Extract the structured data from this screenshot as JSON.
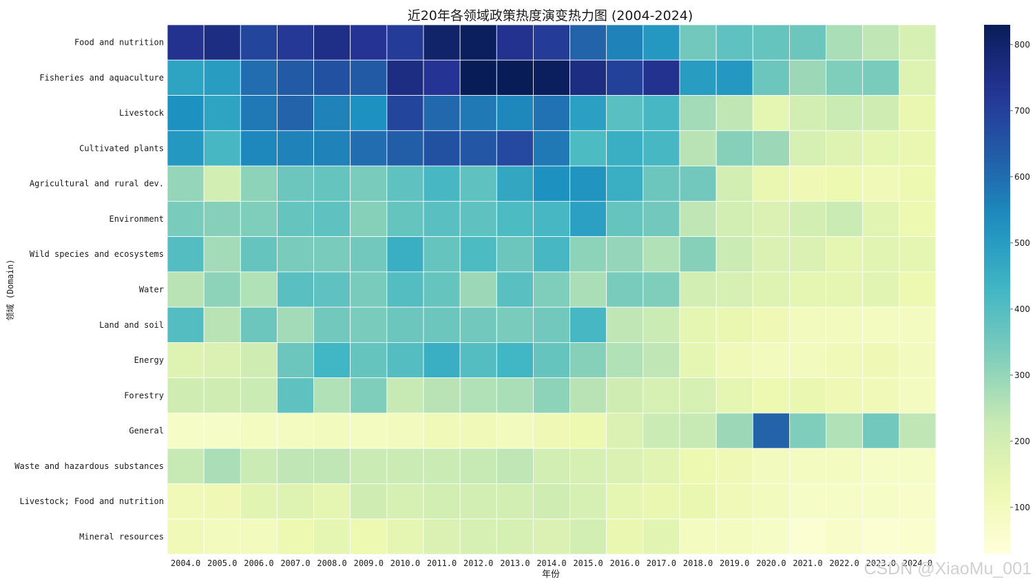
{
  "watermark": "CSDN @XiaoMu_001",
  "colors": {
    "cell_border": "#ffffff",
    "text": "#1a1a1a"
  },
  "chart_data": {
    "type": "heatmap",
    "title": "近20年各领域政策热度演变热力图 (2004-2024)",
    "xlabel": "年份",
    "ylabel": "领域 (Domain)",
    "colormap": "YlGnBu",
    "colorbar_range": [
      30,
      830
    ],
    "colorbar_ticks": [
      "100",
      "200",
      "300",
      "400",
      "500",
      "600",
      "700",
      "800"
    ],
    "x": [
      "2004.0",
      "2005.0",
      "2006.0",
      "2007.0",
      "2008.0",
      "2009.0",
      "2010.0",
      "2011.0",
      "2012.0",
      "2013.0",
      "2014.0",
      "2015.0",
      "2016.0",
      "2017.0",
      "2018.0",
      "2019.0",
      "2020.0",
      "2021.0",
      "2022.0",
      "2023.0",
      "2024.0"
    ],
    "y": [
      "Food and nutrition",
      "Fisheries and aquaculture",
      "Livestock",
      "Cultivated plants",
      "Agricultural and rural dev.",
      "Environment",
      "Wild species and ecosystems",
      "Water",
      "Land and soil",
      "Energy",
      "Forestry",
      "General",
      "Waste and hazardous substances",
      "Livestock; Food and nutrition",
      "Mineral resources"
    ],
    "values": [
      [
        740,
        760,
        690,
        720,
        750,
        730,
        710,
        800,
        820,
        740,
        710,
        620,
        560,
        510,
        350,
        380,
        370,
        360,
        270,
        240,
        190
      ],
      [
        480,
        500,
        600,
        640,
        660,
        640,
        760,
        730,
        830,
        850,
        820,
        760,
        700,
        740,
        500,
        510,
        360,
        290,
        330,
        340,
        170
      ],
      [
        530,
        480,
        580,
        620,
        560,
        530,
        690,
        610,
        580,
        550,
        590,
        490,
        390,
        420,
        280,
        240,
        150,
        200,
        220,
        210,
        140
      ],
      [
        510,
        420,
        550,
        560,
        560,
        600,
        630,
        660,
        650,
        680,
        580,
        410,
        450,
        420,
        250,
        320,
        290,
        190,
        170,
        150,
        140
      ],
      [
        300,
        200,
        310,
        360,
        370,
        340,
        380,
        420,
        380,
        470,
        530,
        520,
        450,
        360,
        350,
        200,
        140,
        120,
        130,
        110,
        130
      ],
      [
        340,
        320,
        330,
        370,
        380,
        320,
        370,
        390,
        380,
        410,
        420,
        490,
        370,
        350,
        240,
        200,
        180,
        200,
        220,
        160,
        130
      ],
      [
        400,
        280,
        370,
        340,
        340,
        350,
        450,
        370,
        410,
        360,
        420,
        310,
        300,
        260,
        320,
        220,
        180,
        180,
        150,
        160,
        150
      ],
      [
        250,
        310,
        260,
        390,
        380,
        340,
        400,
        370,
        290,
        390,
        330,
        270,
        340,
        330,
        200,
        190,
        170,
        150,
        150,
        160,
        130
      ],
      [
        400,
        250,
        360,
        280,
        350,
        340,
        360,
        360,
        350,
        340,
        350,
        420,
        240,
        220,
        150,
        140,
        120,
        100,
        100,
        90,
        90
      ],
      [
        170,
        180,
        210,
        360,
        430,
        370,
        400,
        450,
        400,
        430,
        370,
        320,
        260,
        240,
        150,
        110,
        100,
        100,
        110,
        120,
        100
      ],
      [
        210,
        210,
        220,
        380,
        260,
        330,
        230,
        250,
        260,
        270,
        310,
        250,
        210,
        190,
        190,
        150,
        130,
        140,
        120,
        110,
        90
      ],
      [
        80,
        80,
        90,
        90,
        100,
        90,
        100,
        110,
        110,
        100,
        120,
        130,
        180,
        220,
        230,
        290,
        620,
        330,
        260,
        350,
        240
      ],
      [
        230,
        270,
        220,
        240,
        240,
        220,
        220,
        220,
        230,
        240,
        200,
        190,
        180,
        160,
        130,
        120,
        100,
        90,
        90,
        80,
        80
      ],
      [
        110,
        120,
        160,
        170,
        150,
        210,
        190,
        200,
        200,
        200,
        210,
        190,
        150,
        140,
        140,
        110,
        100,
        80,
        80,
        80,
        70
      ],
      [
        110,
        100,
        100,
        130,
        150,
        130,
        150,
        180,
        190,
        190,
        180,
        200,
        140,
        160,
        90,
        90,
        80,
        50,
        70,
        50,
        60
      ]
    ]
  }
}
